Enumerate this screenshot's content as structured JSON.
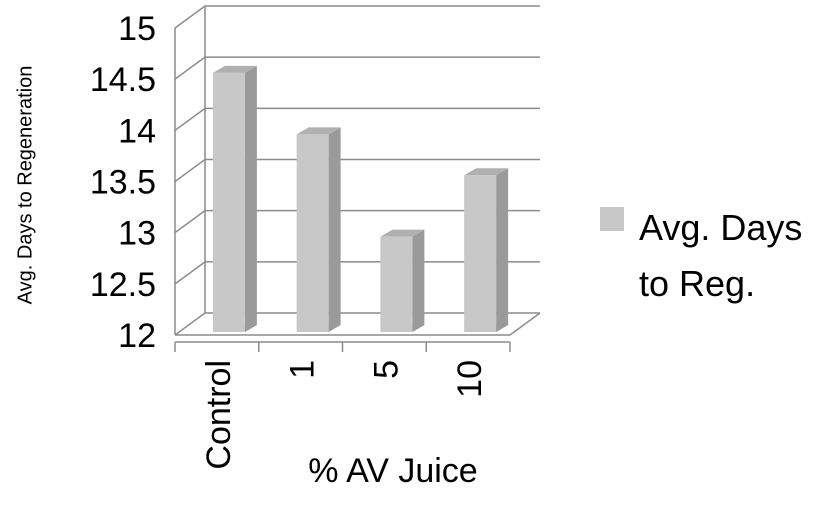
{
  "chart_data": {
    "type": "bar",
    "title": "",
    "xlabel": "% AV Juice",
    "ylabel": "Avg. Days to Regeneration",
    "categories": [
      "Control",
      "1",
      "5",
      "10"
    ],
    "series": [
      {
        "name": "Avg. Days to Reg.",
        "values": [
          14.6,
          14.0,
          13.0,
          13.6
        ],
        "color": "#c8c8c8"
      }
    ],
    "ylim": [
      12,
      15
    ],
    "yticks": [
      "12",
      "12.5",
      "13",
      "13.5",
      "14",
      "14.5",
      "15"
    ],
    "grid": true,
    "style": "3d",
    "legend": {
      "position": "right",
      "lines": [
        "Avg. Days",
        "to Reg."
      ]
    },
    "colors": {
      "bar_front": "#c8c8c8",
      "bar_side": "#9a9a9a",
      "bar_top": "#b0b0b0",
      "gridline": "#8c8c8c"
    }
  }
}
